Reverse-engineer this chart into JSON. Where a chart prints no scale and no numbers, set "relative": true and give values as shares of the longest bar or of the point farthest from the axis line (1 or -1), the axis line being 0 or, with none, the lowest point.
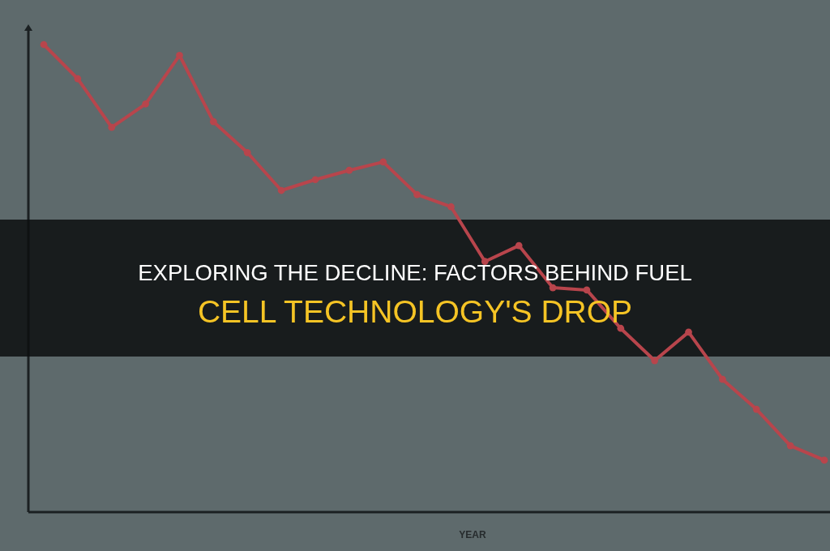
{
  "chart_data": {
    "type": "line",
    "title": "EXPLORING THE DECLINE: FACTORS BEHIND FUEL CELL TECHNOLOGY'S DROP",
    "xlabel": "YEAR",
    "categories": [
      null,
      null,
      null,
      null,
      null,
      null,
      null,
      null,
      null,
      null,
      null,
      null,
      null,
      null,
      null,
      null,
      null,
      null,
      null,
      null,
      null,
      null,
      null,
      null
    ],
    "relative": true,
    "marker": "circle",
    "series": [
      {
        "color": "#b8454c",
        "values": [
          1,
          0.927,
          0.823,
          0.873,
          0.977,
          0.835,
          0.769,
          0.688,
          0.711,
          0.731,
          0.749,
          0.679,
          0.653,
          0.536,
          0.57,
          0.48,
          0.475,
          0.393,
          0.324,
          0.385,
          0.284,
          0.22,
          0.142,
          0.111
        ]
      }
    ]
  }
}
